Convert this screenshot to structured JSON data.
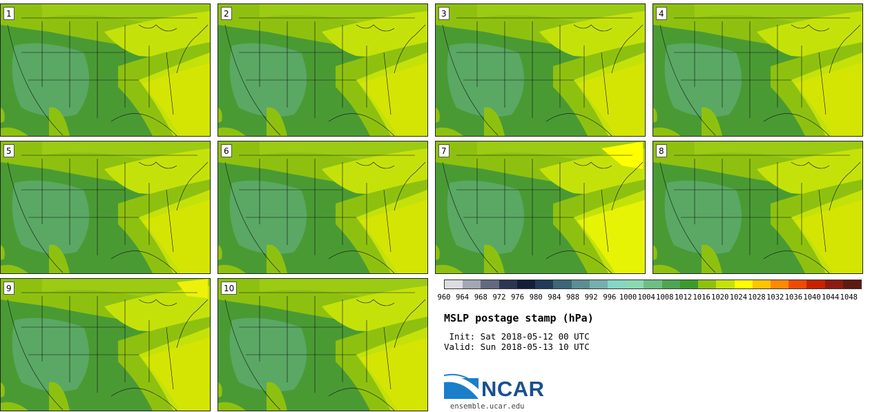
{
  "figure": {
    "title": "MSLP postage stamp (hPa)",
    "init": " Init: Sat 2018-05-12 00 UTC",
    "valid": "Valid: Sun 2018-05-13 10 UTC",
    "website": "ensemble.ucar.edu",
    "logo_text": "NCAR"
  },
  "members": [
    "1",
    "2",
    "3",
    "4",
    "5",
    "6",
    "7",
    "8",
    "9",
    "10"
  ],
  "colorbar": {
    "unit": "hPa",
    "ticks": [
      "960",
      "964",
      "968",
      "972",
      "976",
      "980",
      "984",
      "988",
      "992",
      "996",
      "1000",
      "1004",
      "1008",
      "1012",
      "1016",
      "1020",
      "1024",
      "1028",
      "1032",
      "1036",
      "1040",
      "1044",
      "1048"
    ],
    "colors": [
      "#dcdde0",
      "#a3a6b4",
      "#636a80",
      "#2c3650",
      "#131e3a",
      "#233a58",
      "#3e6578",
      "#5b8e94",
      "#75b0ae",
      "#85d6c4",
      "#8bd9b1",
      "#6dbf86",
      "#4fa552",
      "#3d9a2c",
      "#8ec10f",
      "#c4e20a",
      "#ffff00",
      "#ffc400",
      "#ff8a00",
      "#f04a00",
      "#c72200",
      "#8c1b10",
      "#5e1a10"
    ]
  }
}
